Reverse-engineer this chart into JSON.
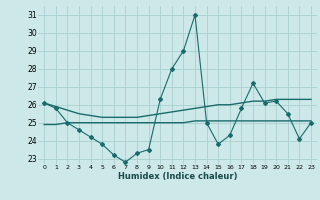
{
  "x": [
    0,
    1,
    2,
    3,
    4,
    5,
    6,
    7,
    8,
    9,
    10,
    11,
    12,
    13,
    14,
    15,
    16,
    17,
    18,
    19,
    20,
    21,
    22,
    23
  ],
  "line1": [
    26.1,
    25.8,
    25.0,
    24.6,
    24.2,
    23.8,
    23.2,
    22.8,
    23.3,
    23.5,
    26.3,
    28.0,
    29.0,
    31.0,
    25.0,
    23.8,
    24.3,
    25.8,
    27.2,
    26.1,
    26.2,
    25.5,
    24.1,
    25.0
  ],
  "line2": [
    26.1,
    25.9,
    25.7,
    25.5,
    25.4,
    25.3,
    25.3,
    25.3,
    25.3,
    25.4,
    25.5,
    25.6,
    25.7,
    25.8,
    25.9,
    26.0,
    26.0,
    26.1,
    26.2,
    26.2,
    26.3,
    26.3,
    26.3,
    26.3
  ],
  "line3": [
    24.9,
    24.9,
    25.0,
    25.0,
    25.0,
    25.0,
    25.0,
    25.0,
    25.0,
    25.0,
    25.0,
    25.0,
    25.0,
    25.1,
    25.1,
    25.1,
    25.1,
    25.1,
    25.1,
    25.1,
    25.1,
    25.1,
    25.1,
    25.1
  ],
  "bg_color": "#cce8e8",
  "line_color": "#1a6b6b",
  "grid_color": "#aacfcf",
  "xlabel": "Humidex (Indice chaleur)",
  "ylim_min": 22.7,
  "ylim_max": 31.5,
  "yticks": [
    23,
    24,
    25,
    26,
    27,
    28,
    29,
    30,
    31
  ],
  "xticks": [
    0,
    1,
    2,
    3,
    4,
    5,
    6,
    7,
    8,
    9,
    10,
    11,
    12,
    13,
    14,
    15,
    16,
    17,
    18,
    19,
    20,
    21,
    22,
    23
  ]
}
